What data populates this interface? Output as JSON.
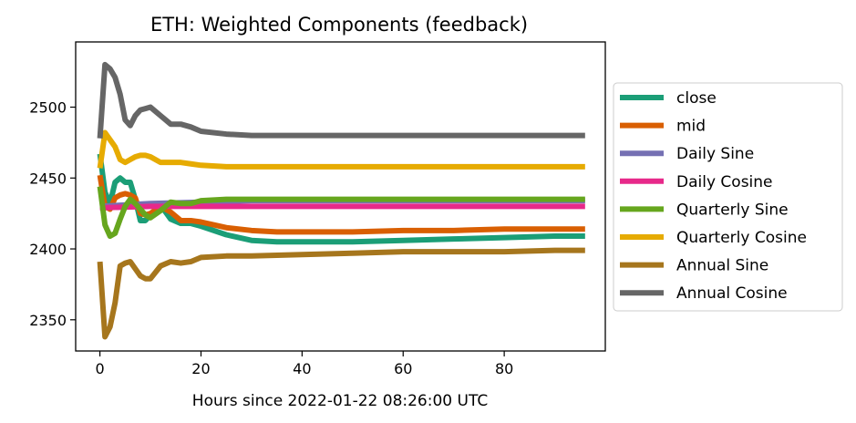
{
  "chart_data": {
    "type": "line",
    "title": "ETH: Weighted Components (feedback)",
    "xlabel": "Hours since 2022-01-22 08:26:00 UTC",
    "ylabel": "",
    "xlim": [
      -4.8,
      100
    ],
    "ylim": [
      2328,
      2546
    ],
    "xticks": [
      0,
      20,
      40,
      60,
      80
    ],
    "yticks": [
      2350,
      2400,
      2450,
      2500
    ],
    "grid": false,
    "legend_position": "right",
    "series": [
      {
        "name": "close",
        "color": "#1b9e77",
        "x": [
          0,
          1,
          2,
          3,
          4,
          5,
          6,
          7,
          8,
          9,
          10,
          12,
          14,
          16,
          18,
          20,
          25,
          30,
          35,
          40,
          50,
          60,
          70,
          80,
          90,
          96
        ],
        "y": [
          2467,
          2440,
          2432,
          2447,
          2450,
          2447,
          2447,
          2435,
          2420,
          2420,
          2424,
          2431,
          2421,
          2418,
          2418,
          2416,
          2410,
          2406,
          2405,
          2405,
          2405,
          2406,
          2407,
          2408,
          2409,
          2409
        ]
      },
      {
        "name": "mid",
        "color": "#d95f02",
        "x": [
          0,
          1,
          2,
          3,
          4,
          5,
          6,
          7,
          8,
          9,
          10,
          12,
          14,
          16,
          18,
          20,
          25,
          30,
          35,
          40,
          50,
          60,
          70,
          80,
          90,
          96
        ],
        "y": [
          2452,
          2430,
          2428,
          2436,
          2438,
          2439,
          2438,
          2436,
          2425,
          2424,
          2425,
          2430,
          2426,
          2420,
          2420,
          2419,
          2415,
          2413,
          2412,
          2412,
          2412,
          2413,
          2413,
          2414,
          2414,
          2414
        ]
      },
      {
        "name": "Daily Sine",
        "color": "#7570b3",
        "x": [
          0,
          10,
          20,
          30,
          40,
          50,
          60,
          70,
          80,
          90,
          96
        ],
        "y": [
          2430,
          2432,
          2433,
          2434,
          2434,
          2434,
          2434,
          2434,
          2434,
          2434,
          2434
        ]
      },
      {
        "name": "Daily Cosine",
        "color": "#e7298a",
        "x": [
          0,
          10,
          20,
          30,
          40,
          50,
          60,
          70,
          80,
          90,
          96
        ],
        "y": [
          2429,
          2430,
          2430,
          2430,
          2430,
          2430,
          2430,
          2430,
          2430,
          2430,
          2430
        ]
      },
      {
        "name": "Quarterly Sine",
        "color": "#66a61e",
        "x": [
          0,
          1,
          2,
          3,
          4,
          5,
          6,
          7,
          8,
          9,
          10,
          12,
          14,
          16,
          18,
          20,
          25,
          30,
          35,
          40,
          50,
          60,
          70,
          80,
          90,
          96
        ],
        "y": [
          2444,
          2417,
          2409,
          2411,
          2421,
          2430,
          2435,
          2432,
          2428,
          2424,
          2422,
          2427,
          2433,
          2432,
          2432,
          2434,
          2435,
          2435,
          2435,
          2435,
          2435,
          2435,
          2435,
          2435,
          2435,
          2435
        ]
      },
      {
        "name": "Quarterly Cosine",
        "color": "#e6ab02",
        "x": [
          0,
          1,
          2,
          3,
          4,
          5,
          6,
          7,
          8,
          9,
          10,
          12,
          14,
          16,
          18,
          20,
          25,
          30,
          35,
          40,
          50,
          60,
          70,
          80,
          90,
          96
        ],
        "y": [
          2457,
          2482,
          2477,
          2472,
          2463,
          2461,
          2463,
          2465,
          2466,
          2466,
          2465,
          2461,
          2461,
          2461,
          2460,
          2459,
          2458,
          2458,
          2458,
          2458,
          2458,
          2458,
          2458,
          2458,
          2458,
          2458
        ]
      },
      {
        "name": "Annual Sine",
        "color": "#a6761d",
        "x": [
          0,
          1,
          2,
          3,
          4,
          5,
          6,
          7,
          8,
          9,
          10,
          12,
          14,
          16,
          18,
          20,
          25,
          30,
          40,
          50,
          60,
          70,
          80,
          90,
          96
        ],
        "y": [
          2391,
          2338,
          2345,
          2362,
          2388,
          2390,
          2391,
          2386,
          2381,
          2379,
          2379,
          2388,
          2391,
          2390,
          2391,
          2394,
          2395,
          2395,
          2396,
          2397,
          2398,
          2398,
          2398,
          2399,
          2399
        ]
      },
      {
        "name": "Annual Cosine",
        "color": "#666666",
        "x": [
          0,
          1,
          2,
          3,
          4,
          5,
          6,
          7,
          8,
          9,
          10,
          12,
          14,
          16,
          18,
          20,
          25,
          30,
          35,
          40,
          50,
          60,
          70,
          80,
          90,
          96
        ],
        "y": [
          2478,
          2530,
          2527,
          2521,
          2509,
          2491,
          2487,
          2494,
          2498,
          2499,
          2500,
          2494,
          2488,
          2488,
          2486,
          2483,
          2481,
          2480,
          2480,
          2480,
          2480,
          2480,
          2480,
          2480,
          2480,
          2480
        ]
      }
    ]
  }
}
